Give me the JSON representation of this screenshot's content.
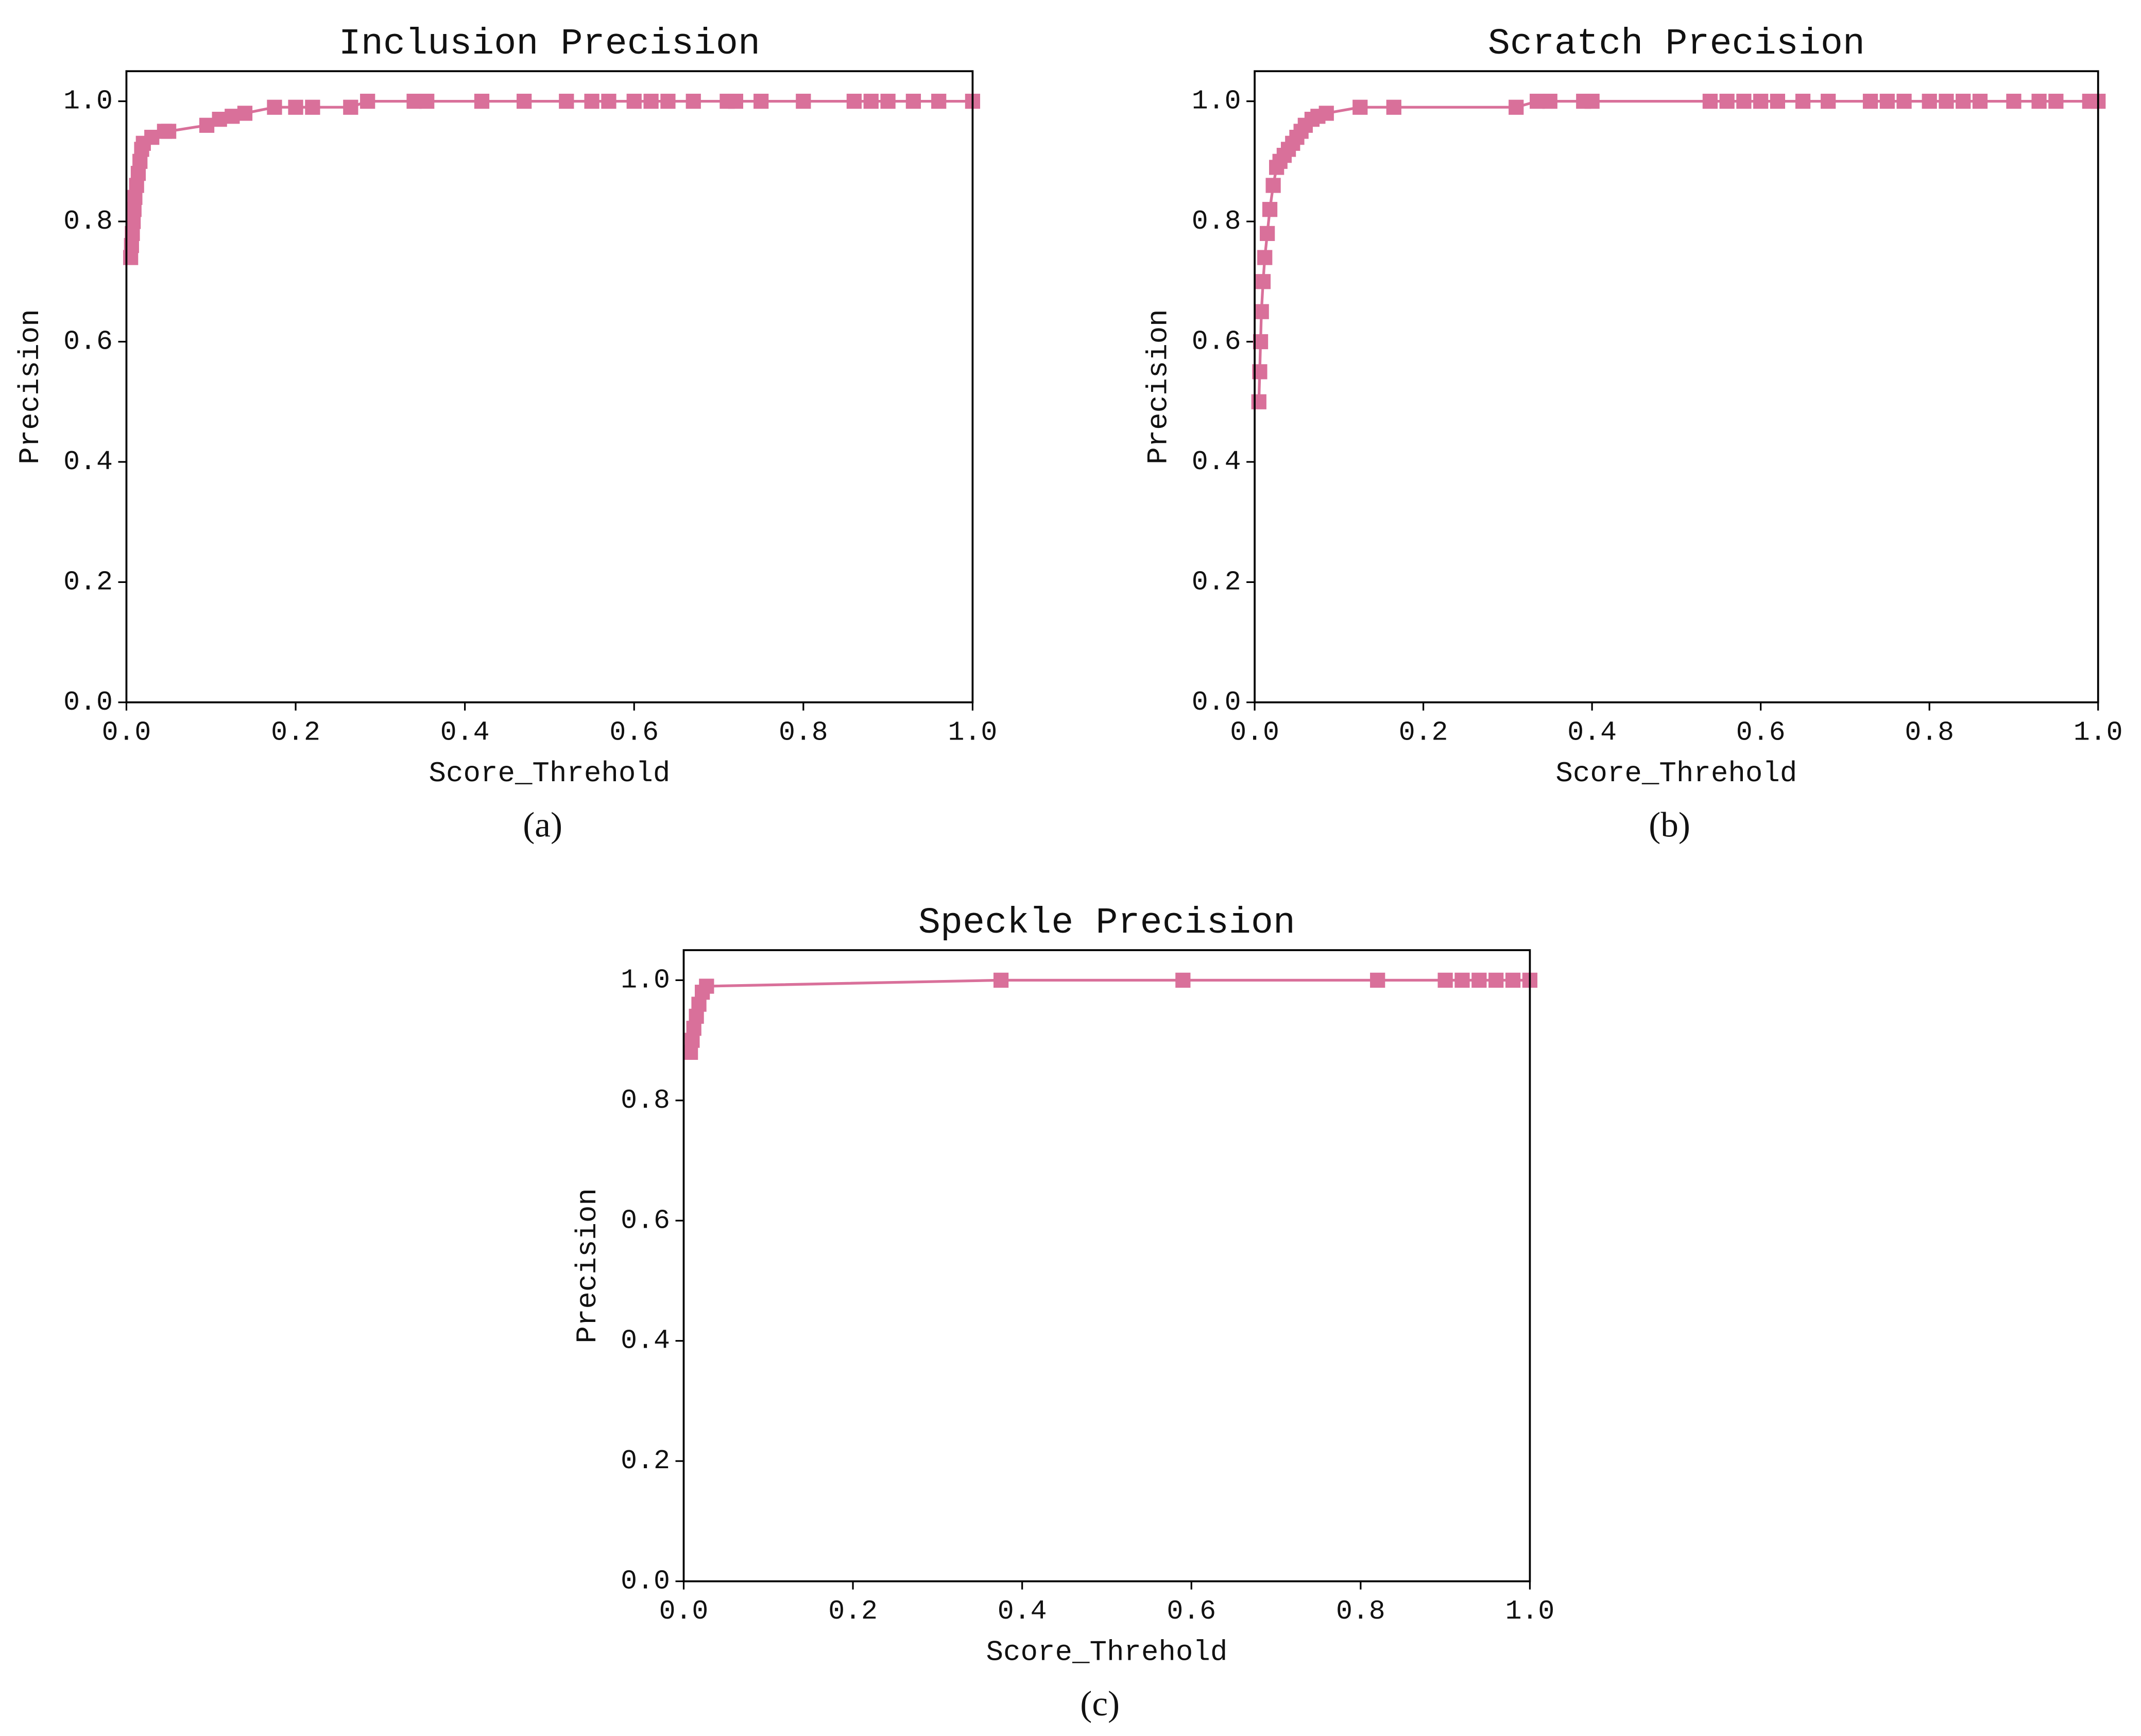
{
  "chart_data": [
    {
      "type": "line",
      "title": "Inclusion Precision",
      "xlabel": "Score_Threhold",
      "ylabel": "Precision",
      "subcaption": "(a)",
      "marker": "square",
      "x": [
        0.005,
        0.006,
        0.007,
        0.008,
        0.009,
        0.01,
        0.012,
        0.014,
        0.016,
        0.018,
        0.02,
        0.03,
        0.045,
        0.05,
        0.095,
        0.11,
        0.125,
        0.14,
        0.175,
        0.2,
        0.22,
        0.265,
        0.285,
        0.34,
        0.355,
        0.42,
        0.47,
        0.52,
        0.55,
        0.57,
        0.6,
        0.62,
        0.64,
        0.67,
        0.71,
        0.72,
        0.75,
        0.8,
        0.86,
        0.88,
        0.9,
        0.93,
        0.96,
        1.0
      ],
      "series": [
        {
          "color": "#d9709a",
          "values": [
            0.74,
            0.76,
            0.78,
            0.8,
            0.82,
            0.84,
            0.86,
            0.88,
            0.9,
            0.92,
            0.93,
            0.94,
            0.95,
            0.95,
            0.96,
            0.97,
            0.975,
            0.98,
            0.99,
            0.99,
            0.99,
            0.99,
            1.0,
            1.0,
            1.0,
            1.0,
            1.0,
            1.0,
            1.0,
            1.0,
            1.0,
            1.0,
            1.0,
            1.0,
            1.0,
            1.0,
            1.0,
            1.0,
            1.0,
            1.0,
            1.0,
            1.0,
            1.0,
            1.0
          ]
        }
      ],
      "xlim": [
        0,
        1
      ],
      "ylim": [
        0,
        1.05
      ],
      "xticks": [
        {
          "value": 0,
          "label": "0.0"
        },
        {
          "value": 0.2,
          "label": "0.2"
        },
        {
          "value": 0.4,
          "label": "0.4"
        },
        {
          "value": 0.6,
          "label": "0.6"
        },
        {
          "value": 0.8,
          "label": "0.8"
        },
        {
          "value": 1,
          "label": "1.0"
        }
      ],
      "yticks": [
        {
          "value": 0,
          "label": "0.0"
        },
        {
          "value": 0.2,
          "label": "0.2"
        },
        {
          "value": 0.4,
          "label": "0.4"
        },
        {
          "value": 0.6,
          "label": "0.6"
        },
        {
          "value": 0.8,
          "label": "0.8"
        },
        {
          "value": 1,
          "label": "1.0"
        }
      ]
    },
    {
      "type": "line",
      "title": "Scratch Precision",
      "xlabel": "Score_Threhold",
      "ylabel": "Precision",
      "subcaption": "(b)",
      "marker": "square",
      "x": [
        0.005,
        0.006,
        0.007,
        0.008,
        0.01,
        0.012,
        0.015,
        0.018,
        0.022,
        0.026,
        0.03,
        0.035,
        0.04,
        0.045,
        0.05,
        0.055,
        0.06,
        0.068,
        0.075,
        0.085,
        0.125,
        0.165,
        0.31,
        0.335,
        0.35,
        0.39,
        0.4,
        0.54,
        0.56,
        0.58,
        0.6,
        0.62,
        0.65,
        0.68,
        0.73,
        0.75,
        0.77,
        0.8,
        0.82,
        0.84,
        0.86,
        0.9,
        0.93,
        0.95,
        0.99,
        1.0
      ],
      "series": [
        {
          "color": "#d9709a",
          "values": [
            0.5,
            0.55,
            0.6,
            0.65,
            0.7,
            0.74,
            0.78,
            0.82,
            0.86,
            0.89,
            0.9,
            0.91,
            0.92,
            0.93,
            0.94,
            0.95,
            0.96,
            0.97,
            0.975,
            0.98,
            0.99,
            0.99,
            0.99,
            1.0,
            1.0,
            1.0,
            1.0,
            1.0,
            1.0,
            1.0,
            1.0,
            1.0,
            1.0,
            1.0,
            1.0,
            1.0,
            1.0,
            1.0,
            1.0,
            1.0,
            1.0,
            1.0,
            1.0,
            1.0,
            1.0,
            1.0
          ]
        }
      ],
      "xlim": [
        0,
        1
      ],
      "ylim": [
        0,
        1.05
      ],
      "xticks": [
        {
          "value": 0,
          "label": "0.0"
        },
        {
          "value": 0.2,
          "label": "0.2"
        },
        {
          "value": 0.4,
          "label": "0.4"
        },
        {
          "value": 0.6,
          "label": "0.6"
        },
        {
          "value": 0.8,
          "label": "0.8"
        },
        {
          "value": 1,
          "label": "1.0"
        }
      ],
      "yticks": [
        {
          "value": 0,
          "label": "0.0"
        },
        {
          "value": 0.2,
          "label": "0.2"
        },
        {
          "value": 0.4,
          "label": "0.4"
        },
        {
          "value": 0.6,
          "label": "0.6"
        },
        {
          "value": 0.8,
          "label": "0.8"
        },
        {
          "value": 1,
          "label": "1.0"
        }
      ]
    },
    {
      "type": "line",
      "title": "Speckle Precision",
      "xlabel": "Score_Threhold",
      "ylabel": "Precision",
      "subcaption": "(c)",
      "marker": "square",
      "x": [
        0.008,
        0.01,
        0.012,
        0.015,
        0.018,
        0.022,
        0.027,
        0.375,
        0.59,
        0.82,
        0.9,
        0.92,
        0.94,
        0.96,
        0.98,
        1.0
      ],
      "series": [
        {
          "color": "#d9709a",
          "values": [
            0.88,
            0.9,
            0.92,
            0.94,
            0.96,
            0.98,
            0.99,
            1.0,
            1.0,
            1.0,
            1.0,
            1.0,
            1.0,
            1.0,
            1.0,
            1.0
          ]
        }
      ],
      "xlim": [
        0,
        1
      ],
      "ylim": [
        0,
        1.05
      ],
      "xticks": [
        {
          "value": 0,
          "label": "0.0"
        },
        {
          "value": 0.2,
          "label": "0.2"
        },
        {
          "value": 0.4,
          "label": "0.4"
        },
        {
          "value": 0.6,
          "label": "0.6"
        },
        {
          "value": 0.8,
          "label": "0.8"
        },
        {
          "value": 1,
          "label": "1.0"
        }
      ],
      "yticks": [
        {
          "value": 0,
          "label": "0.0"
        },
        {
          "value": 0.2,
          "label": "0.2"
        },
        {
          "value": 0.4,
          "label": "0.4"
        },
        {
          "value": 0.6,
          "label": "0.6"
        },
        {
          "value": 0.8,
          "label": "0.8"
        },
        {
          "value": 1,
          "label": "1.0"
        }
      ]
    }
  ]
}
